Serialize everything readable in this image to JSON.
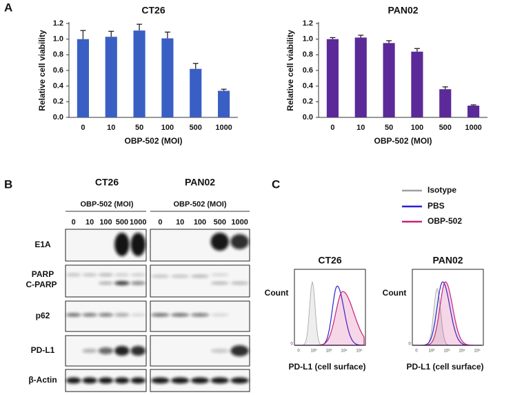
{
  "panel_labels": [
    "A",
    "B",
    "C"
  ],
  "chart_data": [
    {
      "type": "bar",
      "title": "CT26",
      "xlabel": "OBP-502 (MOI)",
      "ylabel": "Relative cell viability",
      "categories": [
        "0",
        "10",
        "50",
        "100",
        "500",
        "1000"
      ],
      "values": [
        1.0,
        1.03,
        1.11,
        1.01,
        0.62,
        0.34
      ],
      "errors": [
        0.11,
        0.07,
        0.08,
        0.08,
        0.07,
        0.02
      ],
      "color": "#3a5fc4",
      "ylim": [
        0,
        1.2
      ],
      "yticks": [
        {
          "value": 0,
          "label": "0.0"
        },
        {
          "value": 0.2,
          "label": "0.2"
        },
        {
          "value": 0.4,
          "label": "0.4"
        },
        {
          "value": 0.6,
          "label": "0.6"
        },
        {
          "value": 0.8,
          "label": "0.8"
        },
        {
          "value": 1.0,
          "label": "1.0"
        },
        {
          "value": 1.2,
          "label": "1.2"
        }
      ]
    },
    {
      "type": "bar",
      "title": "PAN02",
      "xlabel": "OBP-502 (MOI)",
      "ylabel": "Relative cell viability",
      "categories": [
        "0",
        "10",
        "50",
        "100",
        "500",
        "1000"
      ],
      "values": [
        1.0,
        1.02,
        0.95,
        0.84,
        0.36,
        0.15
      ],
      "errors": [
        0.02,
        0.03,
        0.03,
        0.04,
        0.03,
        0.01
      ],
      "color": "#5b2a98",
      "ylim": [
        0,
        1.2
      ],
      "yticks": [
        {
          "value": 0,
          "label": "0.0"
        },
        {
          "value": 0.2,
          "label": "0.2"
        },
        {
          "value": 0.4,
          "label": "0.4"
        },
        {
          "value": 0.6,
          "label": "0.6"
        },
        {
          "value": 0.8,
          "label": "0.8"
        },
        {
          "value": 1.0,
          "label": "1.0"
        },
        {
          "value": 1.2,
          "label": "1.2"
        }
      ]
    }
  ],
  "blot": {
    "cell_lines": [
      "CT26",
      "PAN02"
    ],
    "treatment": "OBP-502 (MOI)",
    "lanes": [
      "0",
      "10",
      "100",
      "500",
      "1000"
    ],
    "rows": [
      "E1A",
      "PARP",
      "C-PARP",
      "p62",
      "PD-L1",
      "β-Actin"
    ]
  },
  "flow": {
    "legend": [
      {
        "name": "Isotype",
        "color": "#a0a0a0"
      },
      {
        "name": "PBS",
        "color": "#2b1fd0"
      },
      {
        "name": "OBP-502",
        "color": "#c8207a"
      }
    ],
    "plots": [
      {
        "title": "CT26",
        "ylabel": "Count",
        "xlabel": "PD-L1 (cell surface)",
        "xticks": [
          "0",
          "10²",
          "10³",
          "10⁴",
          "10⁵"
        ],
        "yticks": [
          "0"
        ]
      },
      {
        "title": "PAN02",
        "ylabel": "Count",
        "xlabel": "PD-L1 (cell surface)",
        "xticks": [
          "0",
          "10²",
          "10³",
          "10⁴",
          "10⁵"
        ],
        "yticks": [
          "0"
        ]
      }
    ]
  }
}
